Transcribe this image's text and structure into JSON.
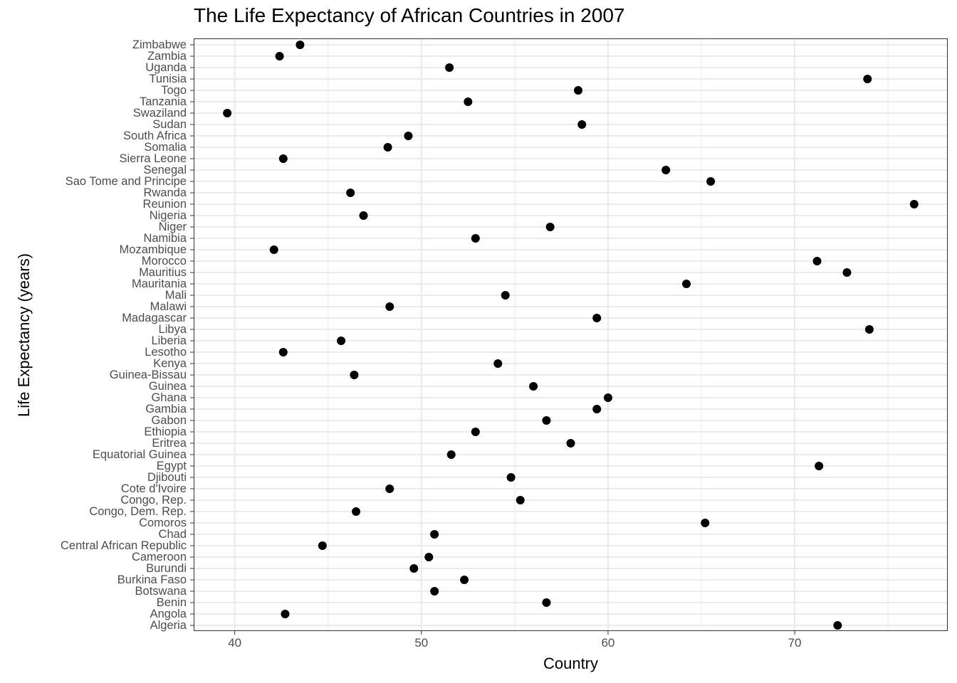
{
  "chart_data": {
    "type": "scatter",
    "title": "The Life Expectancy of African Countries in 2007",
    "xlabel": "Country",
    "ylabel": "Life Expectancy (years)",
    "xlim": [
      37.8,
      78.2
    ],
    "x_ticks": [
      40,
      50,
      60,
      70
    ],
    "x_tick_labels": [
      "40",
      "50",
      "60",
      "70"
    ],
    "grid": true,
    "point_color": "#000000",
    "grid_color": "#ebebeb",
    "points": [
      {
        "country": "Algeria",
        "value": 72.3
      },
      {
        "country": "Angola",
        "value": 42.7
      },
      {
        "country": "Benin",
        "value": 56.7
      },
      {
        "country": "Botswana",
        "value": 50.7
      },
      {
        "country": "Burkina Faso",
        "value": 52.3
      },
      {
        "country": "Burundi",
        "value": 49.6
      },
      {
        "country": "Cameroon",
        "value": 50.4
      },
      {
        "country": "Central African Republic",
        "value": 44.7
      },
      {
        "country": "Chad",
        "value": 50.7
      },
      {
        "country": "Comoros",
        "value": 65.2
      },
      {
        "country": "Congo, Dem. Rep.",
        "value": 46.5
      },
      {
        "country": "Congo, Rep.",
        "value": 55.3
      },
      {
        "country": "Cote d'Ivoire",
        "value": 48.3
      },
      {
        "country": "Djibouti",
        "value": 54.8
      },
      {
        "country": "Egypt",
        "value": 71.3
      },
      {
        "country": "Equatorial Guinea",
        "value": 51.6
      },
      {
        "country": "Eritrea",
        "value": 58.0
      },
      {
        "country": "Ethiopia",
        "value": 52.9
      },
      {
        "country": "Gabon",
        "value": 56.7
      },
      {
        "country": "Gambia",
        "value": 59.4
      },
      {
        "country": "Ghana",
        "value": 60.0
      },
      {
        "country": "Guinea",
        "value": 56.0
      },
      {
        "country": "Guinea-Bissau",
        "value": 46.4
      },
      {
        "country": "Kenya",
        "value": 54.1
      },
      {
        "country": "Lesotho",
        "value": 42.6
      },
      {
        "country": "Liberia",
        "value": 45.7
      },
      {
        "country": "Libya",
        "value": 74.0
      },
      {
        "country": "Madagascar",
        "value": 59.4
      },
      {
        "country": "Malawi",
        "value": 48.3
      },
      {
        "country": "Mali",
        "value": 54.5
      },
      {
        "country": "Mauritania",
        "value": 64.2
      },
      {
        "country": "Mauritius",
        "value": 72.8
      },
      {
        "country": "Morocco",
        "value": 71.2
      },
      {
        "country": "Mozambique",
        "value": 42.1
      },
      {
        "country": "Namibia",
        "value": 52.9
      },
      {
        "country": "Niger",
        "value": 56.9
      },
      {
        "country": "Nigeria",
        "value": 46.9
      },
      {
        "country": "Reunion",
        "value": 76.4
      },
      {
        "country": "Rwanda",
        "value": 46.2
      },
      {
        "country": "Sao Tome and Principe",
        "value": 65.5
      },
      {
        "country": "Senegal",
        "value": 63.1
      },
      {
        "country": "Sierra Leone",
        "value": 42.6
      },
      {
        "country": "Somalia",
        "value": 48.2
      },
      {
        "country": "South Africa",
        "value": 49.3
      },
      {
        "country": "Sudan",
        "value": 58.6
      },
      {
        "country": "Swaziland",
        "value": 39.6
      },
      {
        "country": "Tanzania",
        "value": 52.5
      },
      {
        "country": "Togo",
        "value": 58.4
      },
      {
        "country": "Tunisia",
        "value": 73.9
      },
      {
        "country": "Uganda",
        "value": 51.5
      },
      {
        "country": "Zambia",
        "value": 42.4
      },
      {
        "country": "Zimbabwe",
        "value": 43.5
      }
    ]
  }
}
